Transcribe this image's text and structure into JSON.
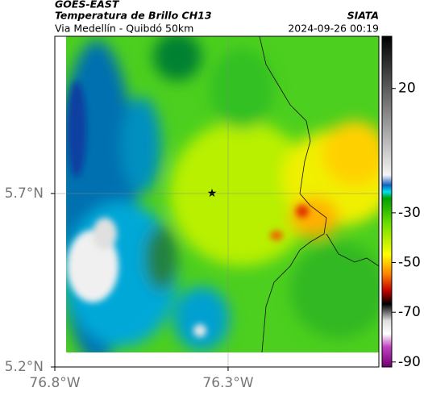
{
  "header": {
    "satellite": "GOES-EAST",
    "product": "Temperatura de Brillo CH13",
    "region": "Via Medellín - Quibdó 50km",
    "source": "SIATA",
    "timestamp": "2024-09-26 00:19"
  },
  "map": {
    "xlim": [
      -76.8,
      -75.865
    ],
    "ylim": [
      5.2,
      6.153
    ],
    "xticks": [
      {
        "value": -76.8,
        "label": "76.8°W"
      },
      {
        "value": -76.3,
        "label": "76.3°W"
      }
    ],
    "yticks": [
      {
        "value": 5.2,
        "label": "5.2°N"
      },
      {
        "value": 5.7,
        "label": "5.7°N"
      }
    ],
    "grid": true
  },
  "colorbar": {
    "lim": [
      -92,
      41
    ],
    "ticks": [
      20,
      -30,
      -50,
      -70,
      -90
    ]
  }
}
